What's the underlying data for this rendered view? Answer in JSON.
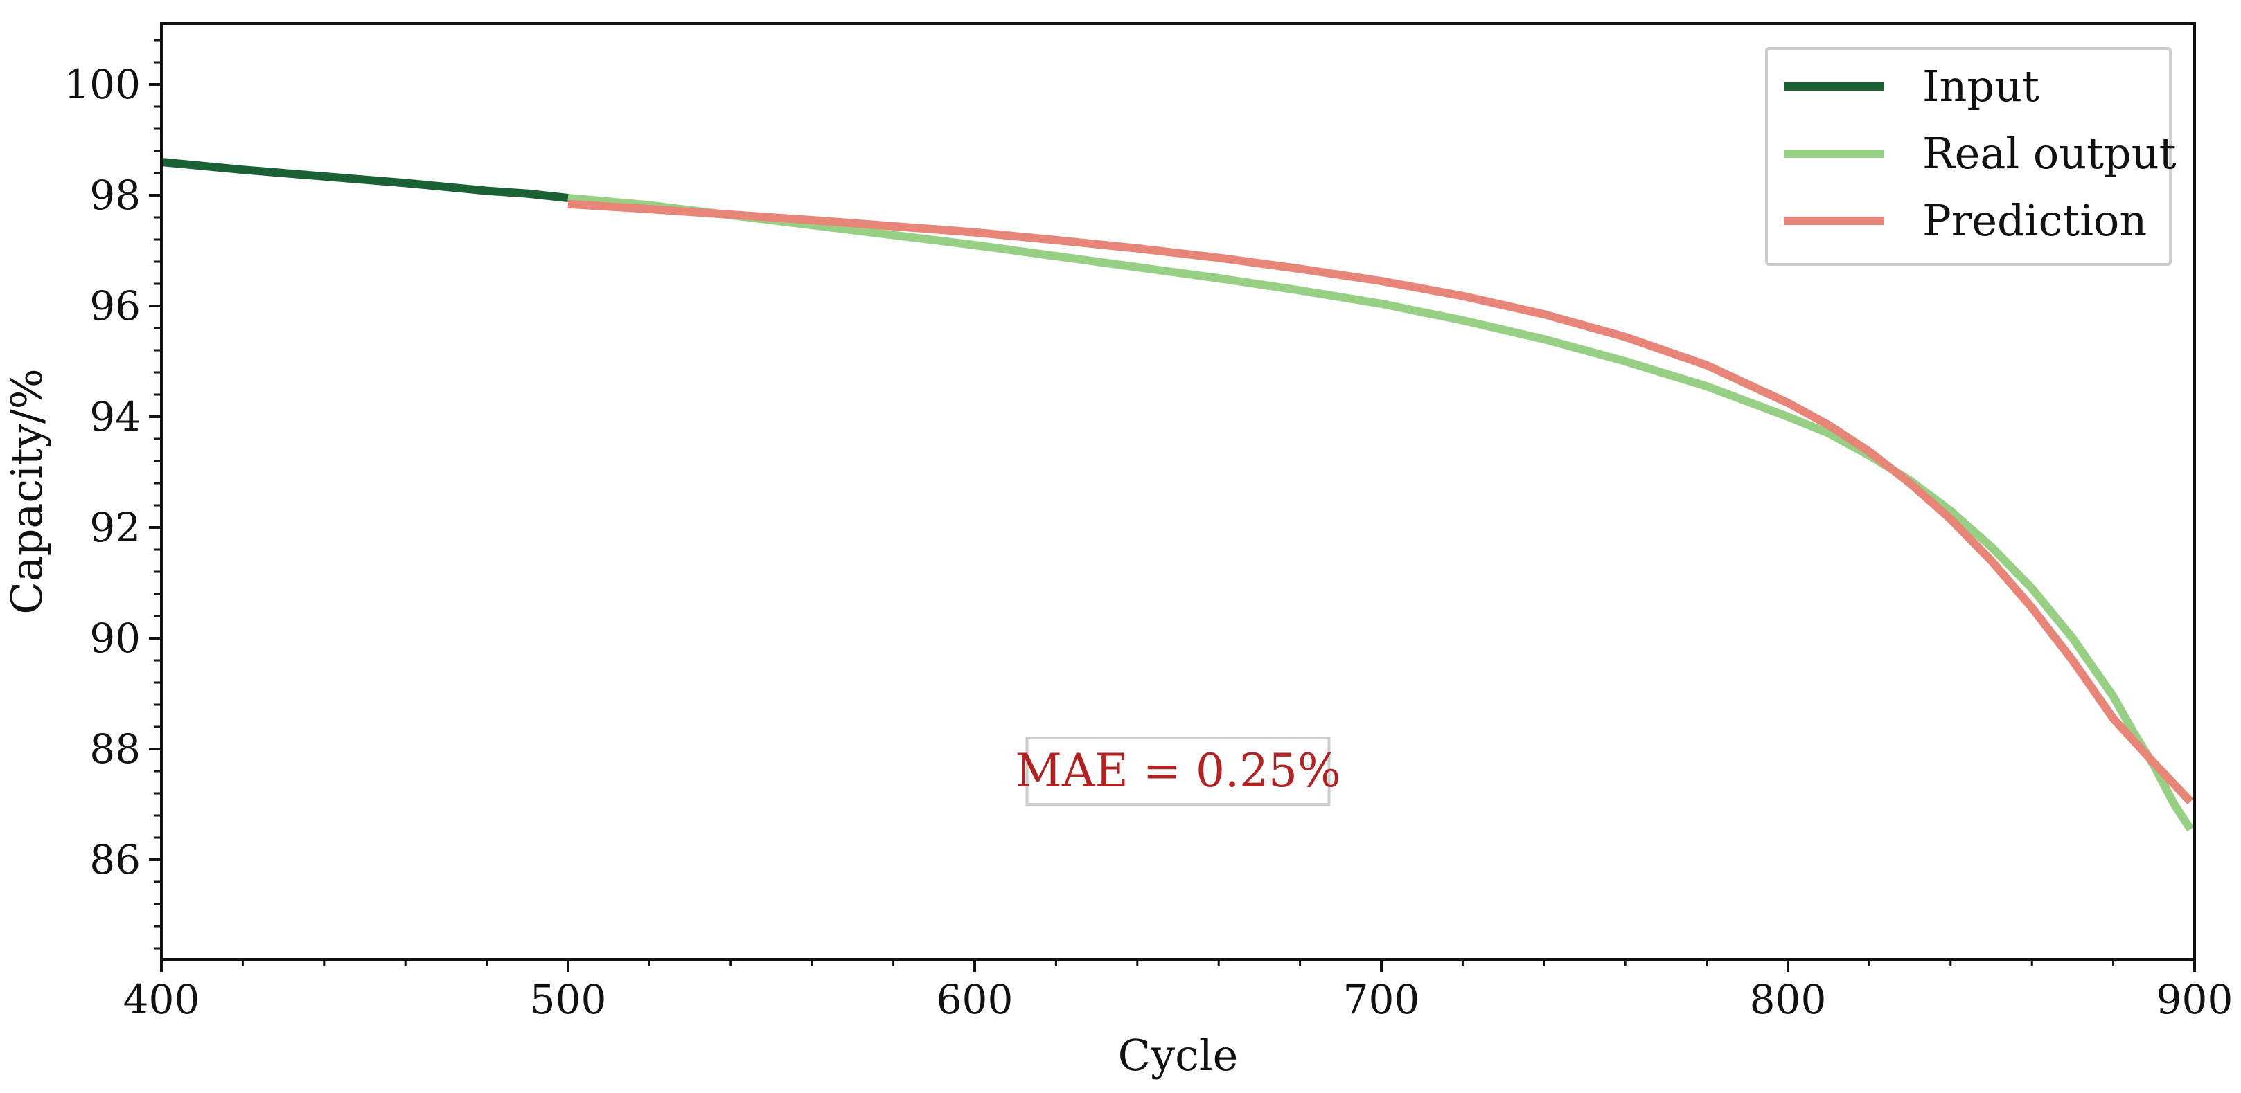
{
  "chart_data": {
    "type": "line",
    "title": "",
    "xlabel": "Cycle",
    "ylabel": "Capacity/%",
    "xlim": [
      400,
      900
    ],
    "ylim": [
      84.2,
      101.1
    ],
    "xticks": [
      400,
      500,
      600,
      700,
      800,
      900
    ],
    "xtick_labels": [
      "400",
      "500",
      "600",
      "700",
      "800",
      "900"
    ],
    "yticks": [
      86,
      88,
      90,
      92,
      94,
      96,
      98,
      100
    ],
    "ytick_labels": [
      "86",
      "88",
      "90",
      "92",
      "94",
      "96",
      "98",
      "100"
    ],
    "grid": false,
    "legend_position": "top-right",
    "series": [
      {
        "name": "Input",
        "color": "#1a6236",
        "x": [
          400,
          420,
          440,
          460,
          480,
          490,
          500
        ],
        "y": [
          98.6,
          98.46,
          98.34,
          98.22,
          98.08,
          98.03,
          97.95
        ]
      },
      {
        "name": "Real output",
        "color": "#97d085",
        "x": [
          500,
          520,
          540,
          560,
          580,
          600,
          620,
          640,
          660,
          680,
          700,
          720,
          740,
          760,
          780,
          800,
          810,
          820,
          830,
          840,
          850,
          860,
          870,
          880,
          885,
          890,
          895,
          899
        ],
        "y": [
          97.95,
          97.82,
          97.64,
          97.46,
          97.28,
          97.1,
          96.9,
          96.7,
          96.5,
          96.28,
          96.04,
          95.74,
          95.4,
          95.0,
          94.55,
          94.0,
          93.7,
          93.3,
          92.85,
          92.3,
          91.65,
          90.9,
          90.0,
          88.95,
          88.3,
          87.7,
          87.0,
          86.55
        ]
      },
      {
        "name": "Prediction",
        "color": "#e88579",
        "x": [
          500,
          520,
          540,
          560,
          580,
          600,
          620,
          640,
          660,
          680,
          700,
          720,
          740,
          760,
          780,
          800,
          810,
          820,
          830,
          840,
          850,
          860,
          870,
          880,
          890,
          899
        ],
        "y": [
          97.84,
          97.75,
          97.65,
          97.55,
          97.44,
          97.33,
          97.19,
          97.04,
          96.87,
          96.67,
          96.45,
          96.18,
          95.85,
          95.44,
          94.93,
          94.25,
          93.85,
          93.37,
          92.8,
          92.15,
          91.4,
          90.55,
          89.6,
          88.55,
          87.75,
          87.05
        ]
      }
    ],
    "annotation": {
      "text": "MAE = 0.25%",
      "color": "#b22222",
      "x": 650,
      "y": 87.6
    }
  }
}
